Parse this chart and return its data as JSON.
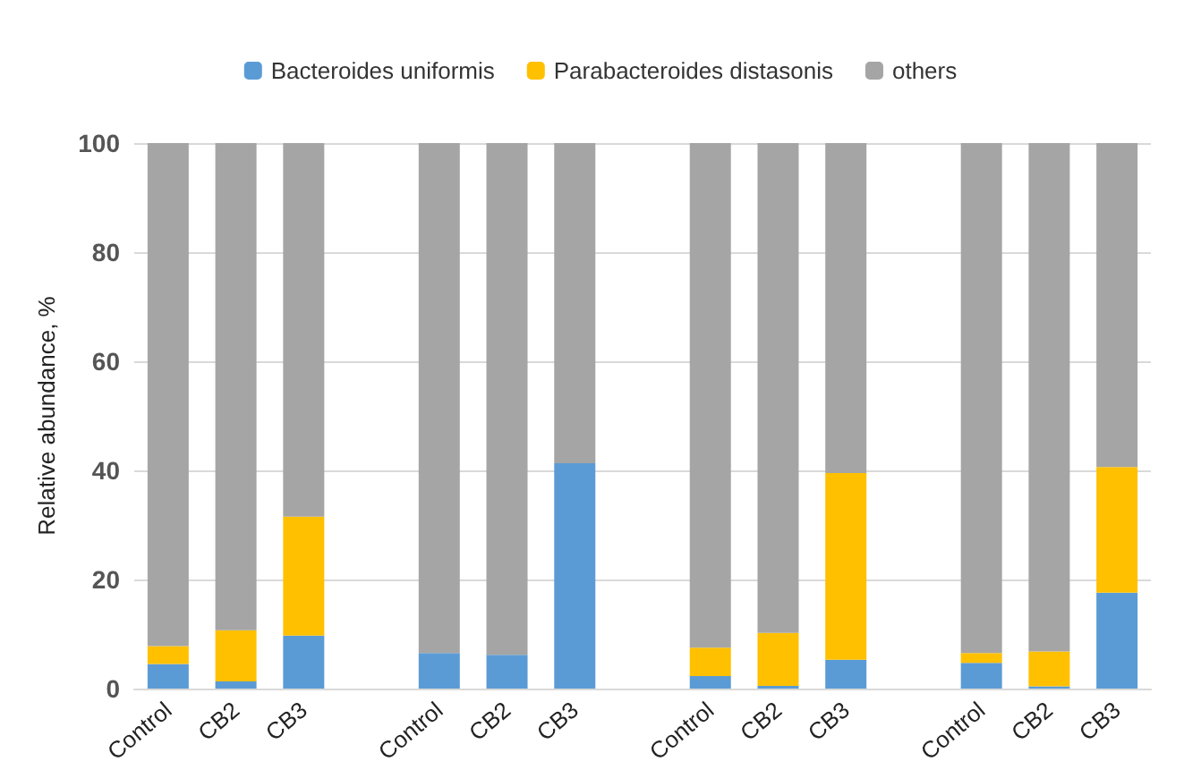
{
  "chart_data": {
    "type": "bar",
    "stacked": true,
    "ylabel": "Relative abundance, %",
    "categories": [
      "Control",
      "CB2",
      "CB3",
      null,
      "Control",
      "CB2",
      "CB3",
      null,
      "Control",
      "CB2",
      "CB3",
      null,
      "Control",
      "CB2",
      "CB3"
    ],
    "series": [
      {
        "name": "Bacteroides uniformis",
        "color": "#5b9bd5",
        "values": [
          4.5,
          1.3,
          9.7,
          null,
          6.5,
          6.2,
          41.3,
          null,
          2.3,
          0.5,
          5.3,
          null,
          4.7,
          0.4,
          17.6
        ]
      },
      {
        "name": "Parabacteroides distasonis",
        "color": "#ffc000",
        "values": [
          3.3,
          9.4,
          21.8,
          null,
          0,
          0,
          0,
          null,
          5.2,
          9.7,
          34.2,
          null,
          1.8,
          6.4,
          23
        ]
      },
      {
        "name": "others",
        "color": "#a5a5a5",
        "values": [
          92.2,
          89.3,
          68.5,
          null,
          93.5,
          93.8,
          58.7,
          null,
          92.5,
          89.8,
          60.5,
          null,
          93.5,
          93.2,
          59.4
        ]
      }
    ],
    "ylim": [
      0,
      100
    ],
    "yticks": [
      0,
      20,
      40,
      60,
      80,
      100
    ],
    "grid": "y",
    "legend": "top"
  }
}
